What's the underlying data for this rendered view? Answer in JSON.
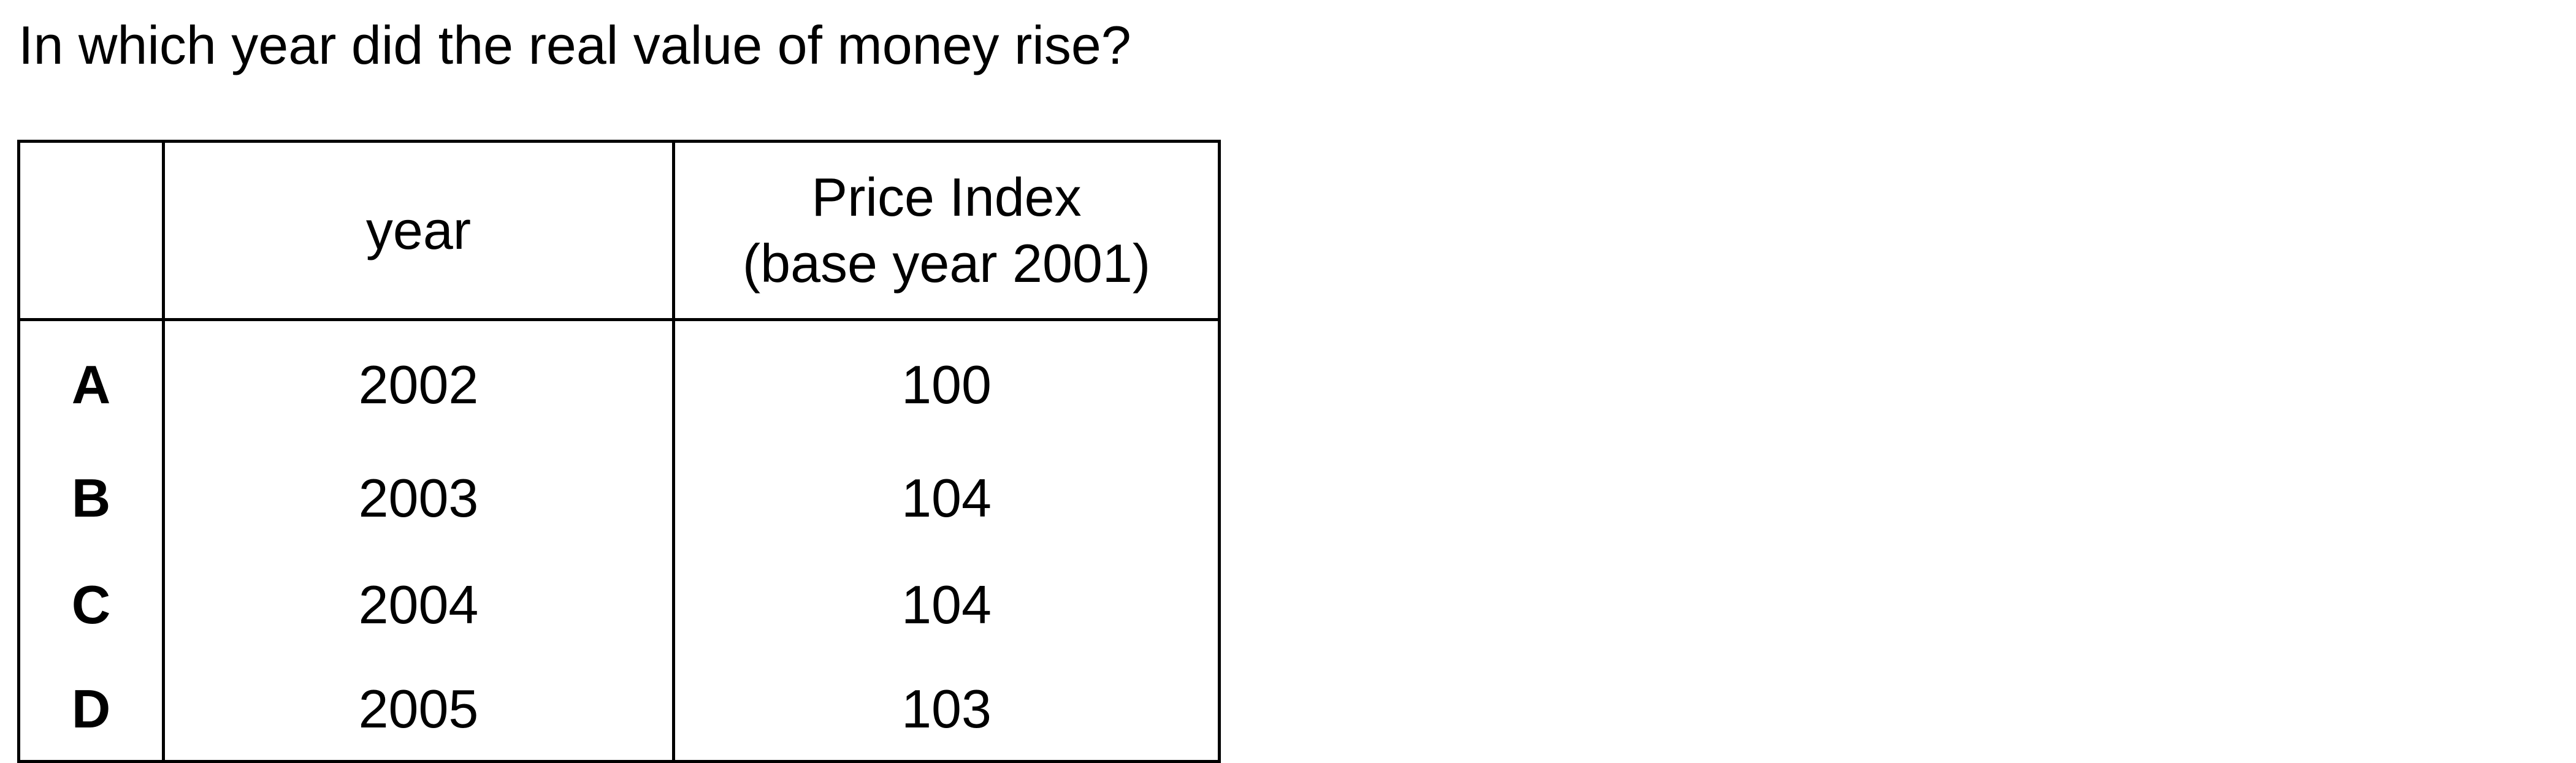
{
  "question": "In which year did the real value of money rise?",
  "table": {
    "headers": {
      "letter": "",
      "year": "year",
      "index_line1": "Price Index",
      "index_line2": "(base year 2001)"
    },
    "rows": [
      {
        "option": "A",
        "year": "2002",
        "index": "100"
      },
      {
        "option": "B",
        "year": "2003",
        "index": "104"
      },
      {
        "option": "C",
        "year": "2004",
        "index": "104"
      },
      {
        "option": "D",
        "year": "2005",
        "index": "103"
      }
    ]
  }
}
